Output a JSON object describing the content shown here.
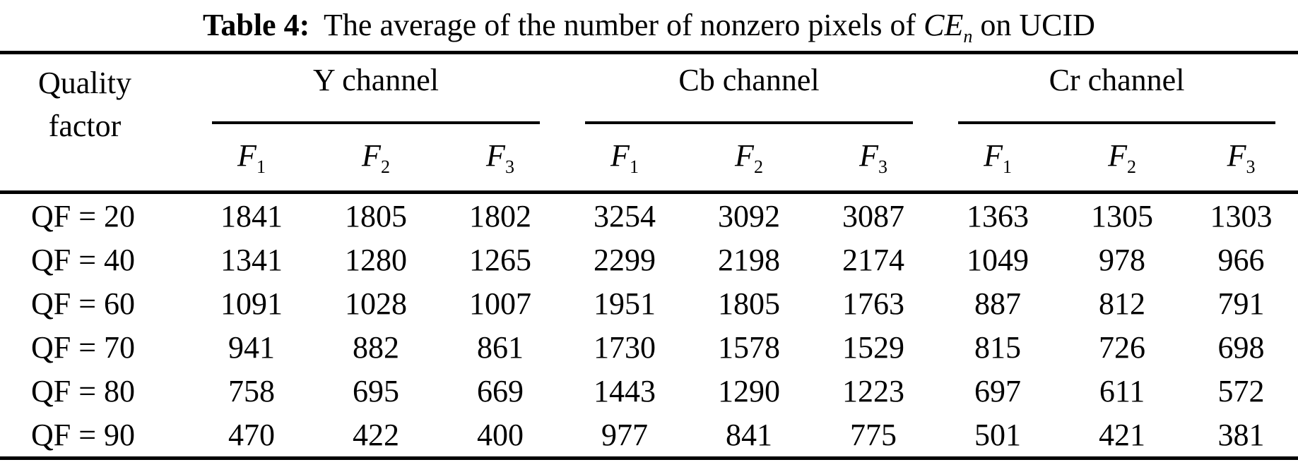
{
  "page": {
    "background": "#ffffff",
    "text_color": "#000000",
    "rule_color": "#000000"
  },
  "title": {
    "label": "Table 4:",
    "text_mid": "The average of the number of nonzero pixels of ",
    "math_base": "CE",
    "math_sub": "n",
    "text_end": " on UCID"
  },
  "table": {
    "corner_header": {
      "line1": "Quality",
      "line2": "factor"
    },
    "groups": [
      {
        "label": "Y channel"
      },
      {
        "label": "Cb channel"
      },
      {
        "label": "Cr channel"
      }
    ],
    "subheaders": [
      {
        "base": "F",
        "sub": "1"
      },
      {
        "base": "F",
        "sub": "2"
      },
      {
        "base": "F",
        "sub": "3"
      },
      {
        "base": "F",
        "sub": "1"
      },
      {
        "base": "F",
        "sub": "2"
      },
      {
        "base": "F",
        "sub": "3"
      },
      {
        "base": "F",
        "sub": "1"
      },
      {
        "base": "F",
        "sub": "2"
      },
      {
        "base": "F",
        "sub": "3"
      }
    ],
    "rows": [
      {
        "label": "QF = 20",
        "values": [
          "1841",
          "1805",
          "1802",
          "3254",
          "3092",
          "3087",
          "1363",
          "1305",
          "1303"
        ]
      },
      {
        "label": "QF = 40",
        "values": [
          "1341",
          "1280",
          "1265",
          "2299",
          "2198",
          "2174",
          "1049",
          "978",
          "966"
        ]
      },
      {
        "label": "QF = 60",
        "values": [
          "1091",
          "1028",
          "1007",
          "1951",
          "1805",
          "1763",
          "887",
          "812",
          "791"
        ]
      },
      {
        "label": "QF = 70",
        "values": [
          "941",
          "882",
          "861",
          "1730",
          "1578",
          "1529",
          "815",
          "726",
          "698"
        ]
      },
      {
        "label": "QF = 80",
        "values": [
          "758",
          "695",
          "669",
          "1443",
          "1290",
          "1223",
          "697",
          "611",
          "572"
        ]
      },
      {
        "label": "QF = 90",
        "values": [
          "470",
          "422",
          "400",
          "977",
          "841",
          "775",
          "501",
          "421",
          "381"
        ]
      }
    ]
  }
}
